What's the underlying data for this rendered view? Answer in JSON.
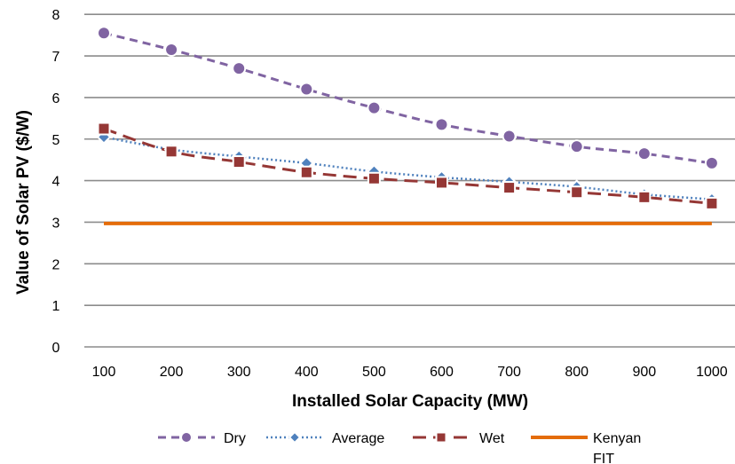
{
  "chart_data": {
    "type": "line",
    "title": "",
    "xlabel": "Installed Solar Capacity (MW)",
    "ylabel": "Value of Solar PV ($/W)",
    "categories": [
      "100",
      "200",
      "300",
      "400",
      "500",
      "600",
      "700",
      "800",
      "900",
      "1000"
    ],
    "yticks": [
      "0",
      "1",
      "2",
      "3",
      "4",
      "5",
      "6",
      "7",
      "8"
    ],
    "ylim": [
      0,
      8
    ],
    "grid": "horizontal",
    "legend_position": "bottom",
    "series": [
      {
        "name": "Dry",
        "values": [
          7.55,
          7.15,
          6.7,
          6.2,
          5.75,
          5.35,
          5.07,
          4.82,
          4.65,
          4.42
        ],
        "color": "#8064a2",
        "dash": "dash",
        "marker": "circle"
      },
      {
        "name": "Average",
        "values": [
          5.05,
          4.75,
          4.58,
          4.42,
          4.22,
          4.08,
          3.97,
          3.85,
          3.67,
          3.55
        ],
        "color": "#4f81bd",
        "dash": "dot",
        "marker": "diamond"
      },
      {
        "name": "Wet",
        "values": [
          5.25,
          4.7,
          4.45,
          4.2,
          4.05,
          3.95,
          3.83,
          3.72,
          3.6,
          3.45
        ],
        "color": "#953735",
        "dash": "longdash",
        "marker": "square"
      },
      {
        "name": "Kenyan FIT",
        "values": [
          2.97,
          2.97,
          2.97,
          2.97,
          2.97,
          2.97,
          2.97,
          2.97,
          2.97,
          2.97
        ],
        "color": "#e46c0a",
        "dash": "solid",
        "marker": "none"
      }
    ]
  }
}
